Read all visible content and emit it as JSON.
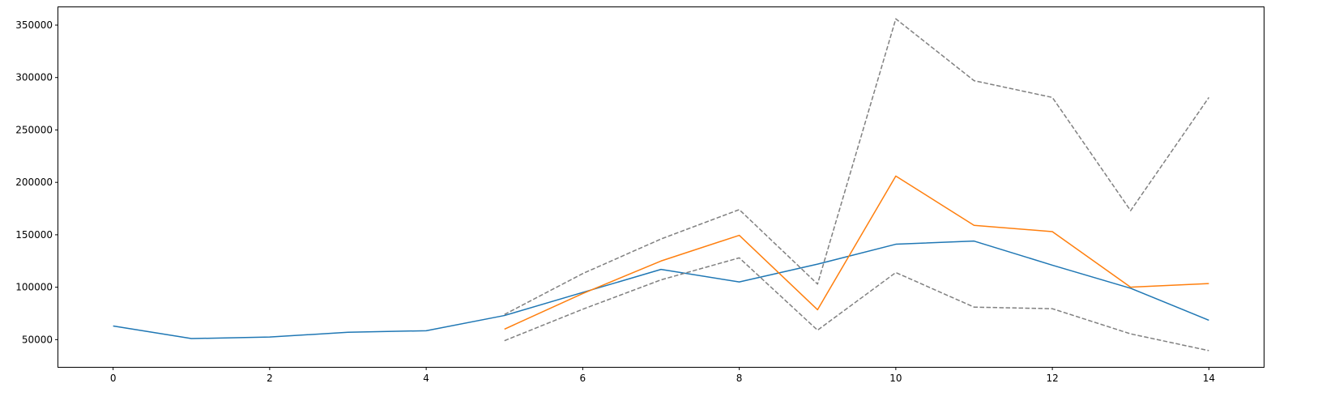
{
  "chart_data": {
    "type": "line",
    "title": "",
    "xlabel": "",
    "ylabel": "",
    "xlim": [
      -0.7,
      14.7
    ],
    "ylim": [
      24000,
      367000
    ],
    "grid": false,
    "xticks": [
      0,
      2,
      4,
      6,
      8,
      10,
      12,
      14
    ],
    "xtick_labels": [
      "0",
      "2",
      "4",
      "6",
      "8",
      "10",
      "12",
      "14"
    ],
    "yticks": [
      50000,
      100000,
      150000,
      200000,
      250000,
      300000,
      350000
    ],
    "ytick_labels": [
      "50000",
      "100000",
      "150000",
      "200000",
      "250000",
      "300000",
      "350000"
    ],
    "series": [
      {
        "color": "#1f77b4",
        "dash": "solid",
        "x": [
          0,
          1,
          2,
          3,
          4,
          5,
          6,
          7,
          8,
          9,
          10,
          11,
          12,
          13,
          14
        ],
        "values": [
          63000,
          51000,
          52500,
          57000,
          58500,
          73000,
          95000,
          117000,
          105000,
          122000,
          141000,
          144000,
          121000,
          99000,
          68500
        ]
      },
      {
        "color": "#ff7f0e",
        "dash": "solid",
        "x": [
          5,
          6,
          7,
          8,
          9,
          10,
          11,
          12,
          13,
          14
        ],
        "values": [
          60000,
          94000,
          125000,
          149500,
          78500,
          206000,
          159000,
          153000,
          100000,
          103500
        ]
      },
      {
        "color": "#808080",
        "dash": "dashed",
        "x": [
          5,
          6,
          7,
          8,
          9,
          10,
          11,
          12,
          13,
          14
        ],
        "values": [
          74000,
          113000,
          146000,
          174000,
          103000,
          356000,
          297000,
          281000,
          173000,
          281000
        ]
      },
      {
        "color": "#808080",
        "dash": "dashed",
        "x": [
          5,
          6,
          7,
          8,
          9,
          10,
          11,
          12,
          13,
          14
        ],
        "values": [
          49000,
          79000,
          107000,
          128000,
          59000,
          114000,
          81000,
          79500,
          55500,
          39500
        ]
      }
    ]
  }
}
